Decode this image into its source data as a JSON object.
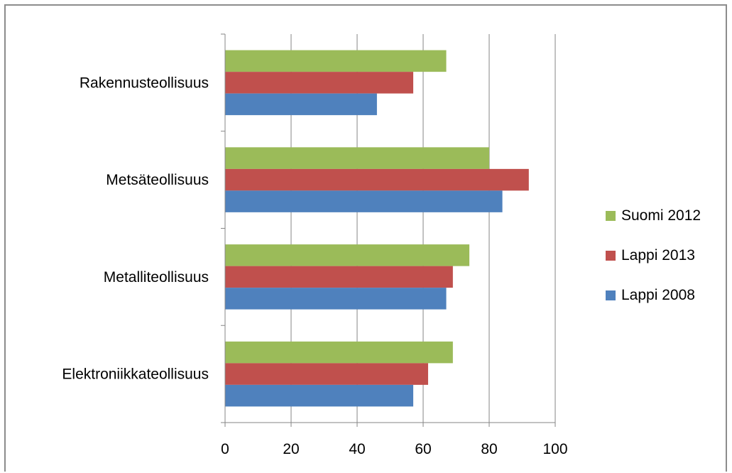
{
  "chart_data": {
    "type": "bar",
    "orientation": "horizontal",
    "categories": [
      "Rakennusteollisuus",
      "Metsäteollisuus",
      "Metalliteollisuus",
      "Elektroniikkateollisuus"
    ],
    "series": [
      {
        "name": "Suomi 2012",
        "color": "#9bbb59",
        "values": [
          67,
          80,
          74,
          69
        ]
      },
      {
        "name": "Lappi 2013",
        "color": "#c0504d",
        "values": [
          57,
          92,
          69,
          61.5
        ]
      },
      {
        "name": "Lappi 2008",
        "color": "#4f81bd",
        "values": [
          46,
          84,
          67,
          57
        ]
      }
    ],
    "xticks": [
      "0",
      "20",
      "40",
      "60",
      "80",
      "100"
    ],
    "xlim": [
      0,
      100
    ],
    "grid": true,
    "legend_position": "right",
    "title": "",
    "xlabel": "",
    "ylabel": ""
  }
}
